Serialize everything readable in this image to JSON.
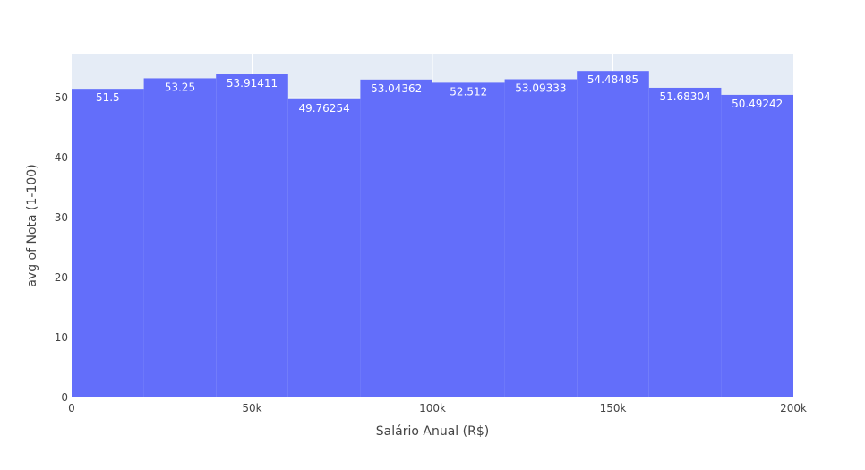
{
  "chart_data": {
    "type": "bar",
    "title": "",
    "xlabel": "Salário Anual (R$)",
    "ylabel": "avg of Nota (1-100)",
    "bar_color": "#636efa",
    "plot_bg": "#e5ecf6",
    "grid": true,
    "xlim": [
      0,
      200000
    ],
    "ylim": [
      0,
      57.35
    ],
    "x_ticks": [
      0,
      50000,
      100000,
      150000,
      200000
    ],
    "x_tick_labels": [
      "0",
      "50k",
      "100k",
      "150k",
      "200k"
    ],
    "y_ticks": [
      0,
      10,
      20,
      30,
      40,
      50
    ],
    "y_tick_labels": [
      "0",
      "10",
      "20",
      "30",
      "40",
      "50"
    ],
    "bins": [
      {
        "x0": 0,
        "x1": 20000,
        "value": 51.5,
        "label": "51.5"
      },
      {
        "x0": 20000,
        "x1": 40000,
        "value": 53.25,
        "label": "53.25"
      },
      {
        "x0": 40000,
        "x1": 60000,
        "value": 53.91411,
        "label": "53.91411"
      },
      {
        "x0": 60000,
        "x1": 80000,
        "value": 49.76254,
        "label": "49.76254"
      },
      {
        "x0": 80000,
        "x1": 100000,
        "value": 53.04362,
        "label": "53.04362"
      },
      {
        "x0": 100000,
        "x1": 120000,
        "value": 52.512,
        "label": "52.512"
      },
      {
        "x0": 120000,
        "x1": 140000,
        "value": 53.09333,
        "label": "53.09333"
      },
      {
        "x0": 140000,
        "x1": 160000,
        "value": 54.48485,
        "label": "54.48485"
      },
      {
        "x0": 160000,
        "x1": 180000,
        "value": 51.68304,
        "label": "51.68304"
      },
      {
        "x0": 180000,
        "x1": 200000,
        "value": 50.49242,
        "label": "50.49242"
      }
    ]
  }
}
